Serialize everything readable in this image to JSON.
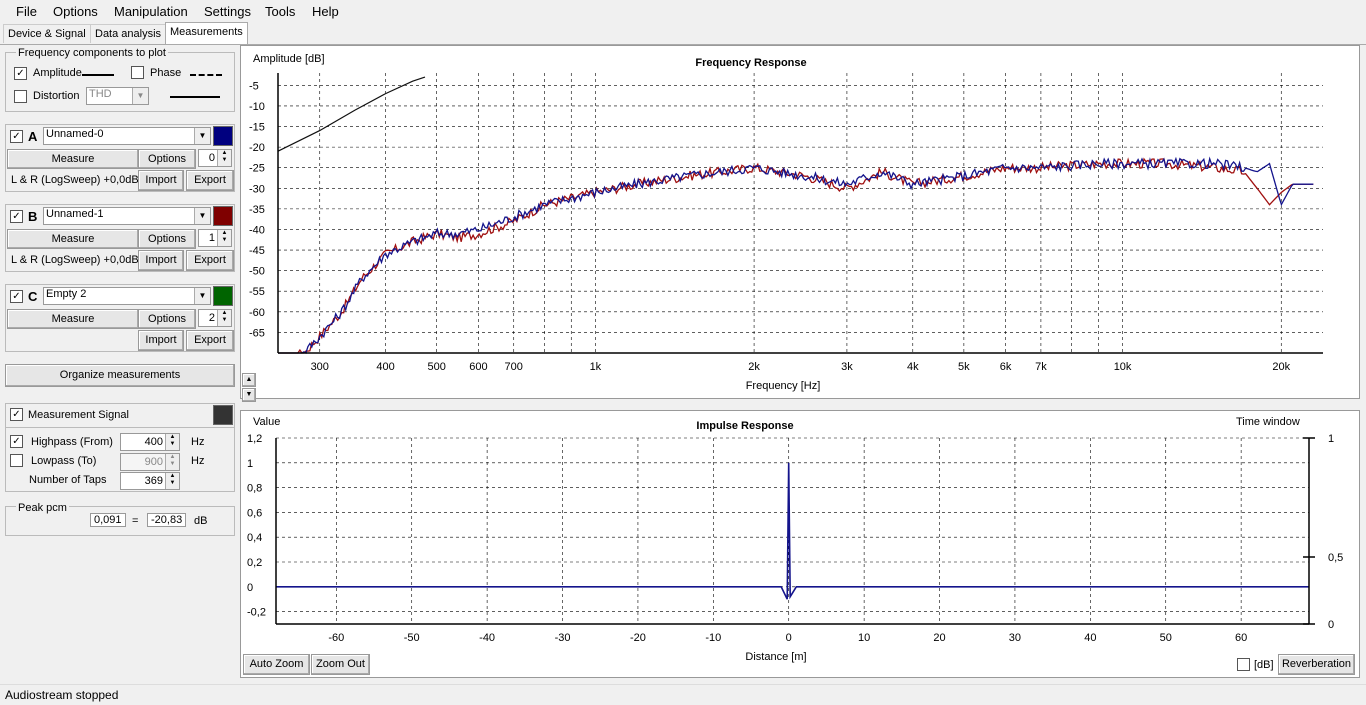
{
  "menu": [
    "File",
    "Options",
    "Manipulation",
    "Settings",
    "Tools",
    "Help"
  ],
  "tabs": [
    {
      "label": "Device & Signal",
      "active": false
    },
    {
      "label": "Data analysis",
      "active": false
    },
    {
      "label": "Measurements",
      "active": true
    }
  ],
  "freq_components": {
    "title": "Frequency components to plot",
    "amplitude": {
      "label": "Amplitude",
      "checked": true
    },
    "phase": {
      "label": "Phase",
      "checked": false
    },
    "distortion": {
      "label": "Distortion",
      "checked": false,
      "value": "THD"
    }
  },
  "measurements": [
    {
      "letter": "A",
      "checked": true,
      "name": "Unnamed-0",
      "color": "#00007f",
      "measure": "Measure",
      "options": "Options",
      "index": "0",
      "source": "L & R (LogSweep) +0,0dB",
      "import": "Import",
      "export": "Export"
    },
    {
      "letter": "B",
      "checked": true,
      "name": "Unnamed-1",
      "color": "#7f0000",
      "measure": "Measure",
      "options": "Options",
      "index": "1",
      "source": "L & R (LogSweep) +0,0dB",
      "import": "Import",
      "export": "Export"
    },
    {
      "letter": "C",
      "checked": true,
      "name": "Empty 2",
      "color": "#006400",
      "measure": "Measure",
      "options": "Options",
      "index": "2",
      "source": "",
      "import": "Import",
      "export": "Export"
    }
  ],
  "organize_label": "Organize measurements",
  "measurement_signal": {
    "label": "Measurement Signal",
    "checked": true,
    "color": "#333333",
    "highpass": {
      "label": "Highpass (From)",
      "checked": true,
      "value": "400",
      "unit": "Hz"
    },
    "lowpass": {
      "label": "Lowpass (To)",
      "checked": false,
      "value": "900",
      "unit": "Hz"
    },
    "taps": {
      "label": "Number of Taps",
      "value": "369"
    }
  },
  "peak": {
    "label": "Peak pcm",
    "value": "0,091",
    "eq": "=",
    "db": "-20,83",
    "unit": "dB"
  },
  "freq_plot": {
    "ylabel": "Amplitude [dB]",
    "title": "Frequency Response",
    "xlabel": "Frequency [Hz]",
    "y_ticks": [
      "-5",
      "-10",
      "-15",
      "-20",
      "-25",
      "-30",
      "-35",
      "-40",
      "-45",
      "-50",
      "-55",
      "-60",
      "-65"
    ],
    "x_ticks": [
      "300",
      "400",
      "500",
      "600",
      "700",
      "1k",
      "2k",
      "3k",
      "4k",
      "5k",
      "6k",
      "7k",
      "10k",
      "20k"
    ]
  },
  "imp_plot": {
    "ylabel": "Value",
    "title": "Impulse Response",
    "xlabel": "Distance [m]",
    "time_window_label": "Time window",
    "y_ticks": [
      "1,2",
      "1",
      "0,8",
      "0,6",
      "0,4",
      "0,2",
      "0",
      "-0,2"
    ],
    "x_ticks": [
      "-60",
      "-50",
      "-40",
      "-30",
      "-20",
      "-10",
      "0",
      "10",
      "20",
      "30",
      "40",
      "50",
      "60"
    ],
    "right_ticks": [
      "1",
      "0,5",
      "0"
    ]
  },
  "buttons": {
    "auto_zoom": "Auto Zoom",
    "zoom_out": "Zoom Out",
    "db": "[dB]",
    "reverberation": "Reverberation"
  },
  "status": "Audiostream stopped",
  "chart_data": [
    {
      "type": "line",
      "title": "Frequency Response",
      "xlabel": "Frequency [Hz]",
      "ylabel": "Amplitude [dB]",
      "xscale": "log",
      "xlim": [
        250,
        24000
      ],
      "ylim": [
        -70,
        -2
      ],
      "grid": true,
      "x": [
        250,
        280,
        300,
        330,
        360,
        400,
        450,
        500,
        550,
        600,
        700,
        800,
        1000,
        1200,
        1500,
        2000,
        2500,
        3000,
        3500,
        4000,
        5000,
        6000,
        7000,
        9000,
        10000,
        12000,
        15000,
        17000,
        18000,
        19000,
        20000,
        21000,
        23000
      ],
      "series": [
        {
          "values": [
            -72,
            -70,
            -66,
            -60,
            -52,
            -46,
            -43,
            -41,
            -42,
            -41,
            -38,
            -34,
            -31,
            -29,
            -27,
            -25,
            -27,
            -30,
            -26,
            -29,
            -27,
            -25,
            -25,
            -24,
            -24,
            -24,
            -25,
            -26,
            -30,
            -34,
            -31,
            -29,
            -29
          ]
        },
        {
          "values": [
            -72,
            -70,
            -66,
            -60,
            -52,
            -46,
            -43,
            -41,
            -41,
            -40,
            -37,
            -34,
            -31,
            -29,
            -27,
            -25,
            -27,
            -29,
            -26,
            -29,
            -27,
            -25,
            -25,
            -24,
            -24,
            -24,
            -24,
            -25,
            -26,
            -24,
            -34,
            -29,
            -29
          ]
        },
        {
          "x": [
            250,
            300,
            350,
            400,
            450,
            475
          ],
          "values": [
            -21,
            -16,
            -11,
            -7,
            -4,
            -3
          ]
        }
      ]
    },
    {
      "type": "line",
      "title": "Impulse Response",
      "xlabel": "Distance [m]",
      "ylabel": "Value",
      "xlim": [
        -68,
        69
      ],
      "ylim": [
        -0.3,
        1.2
      ],
      "grid": true,
      "x": [
        -68,
        -1,
        -0.2,
        0,
        0.2,
        1,
        69
      ],
      "values": [
        0,
        0,
        -0.1,
        1,
        -0.08,
        0,
        0
      ]
    }
  ]
}
